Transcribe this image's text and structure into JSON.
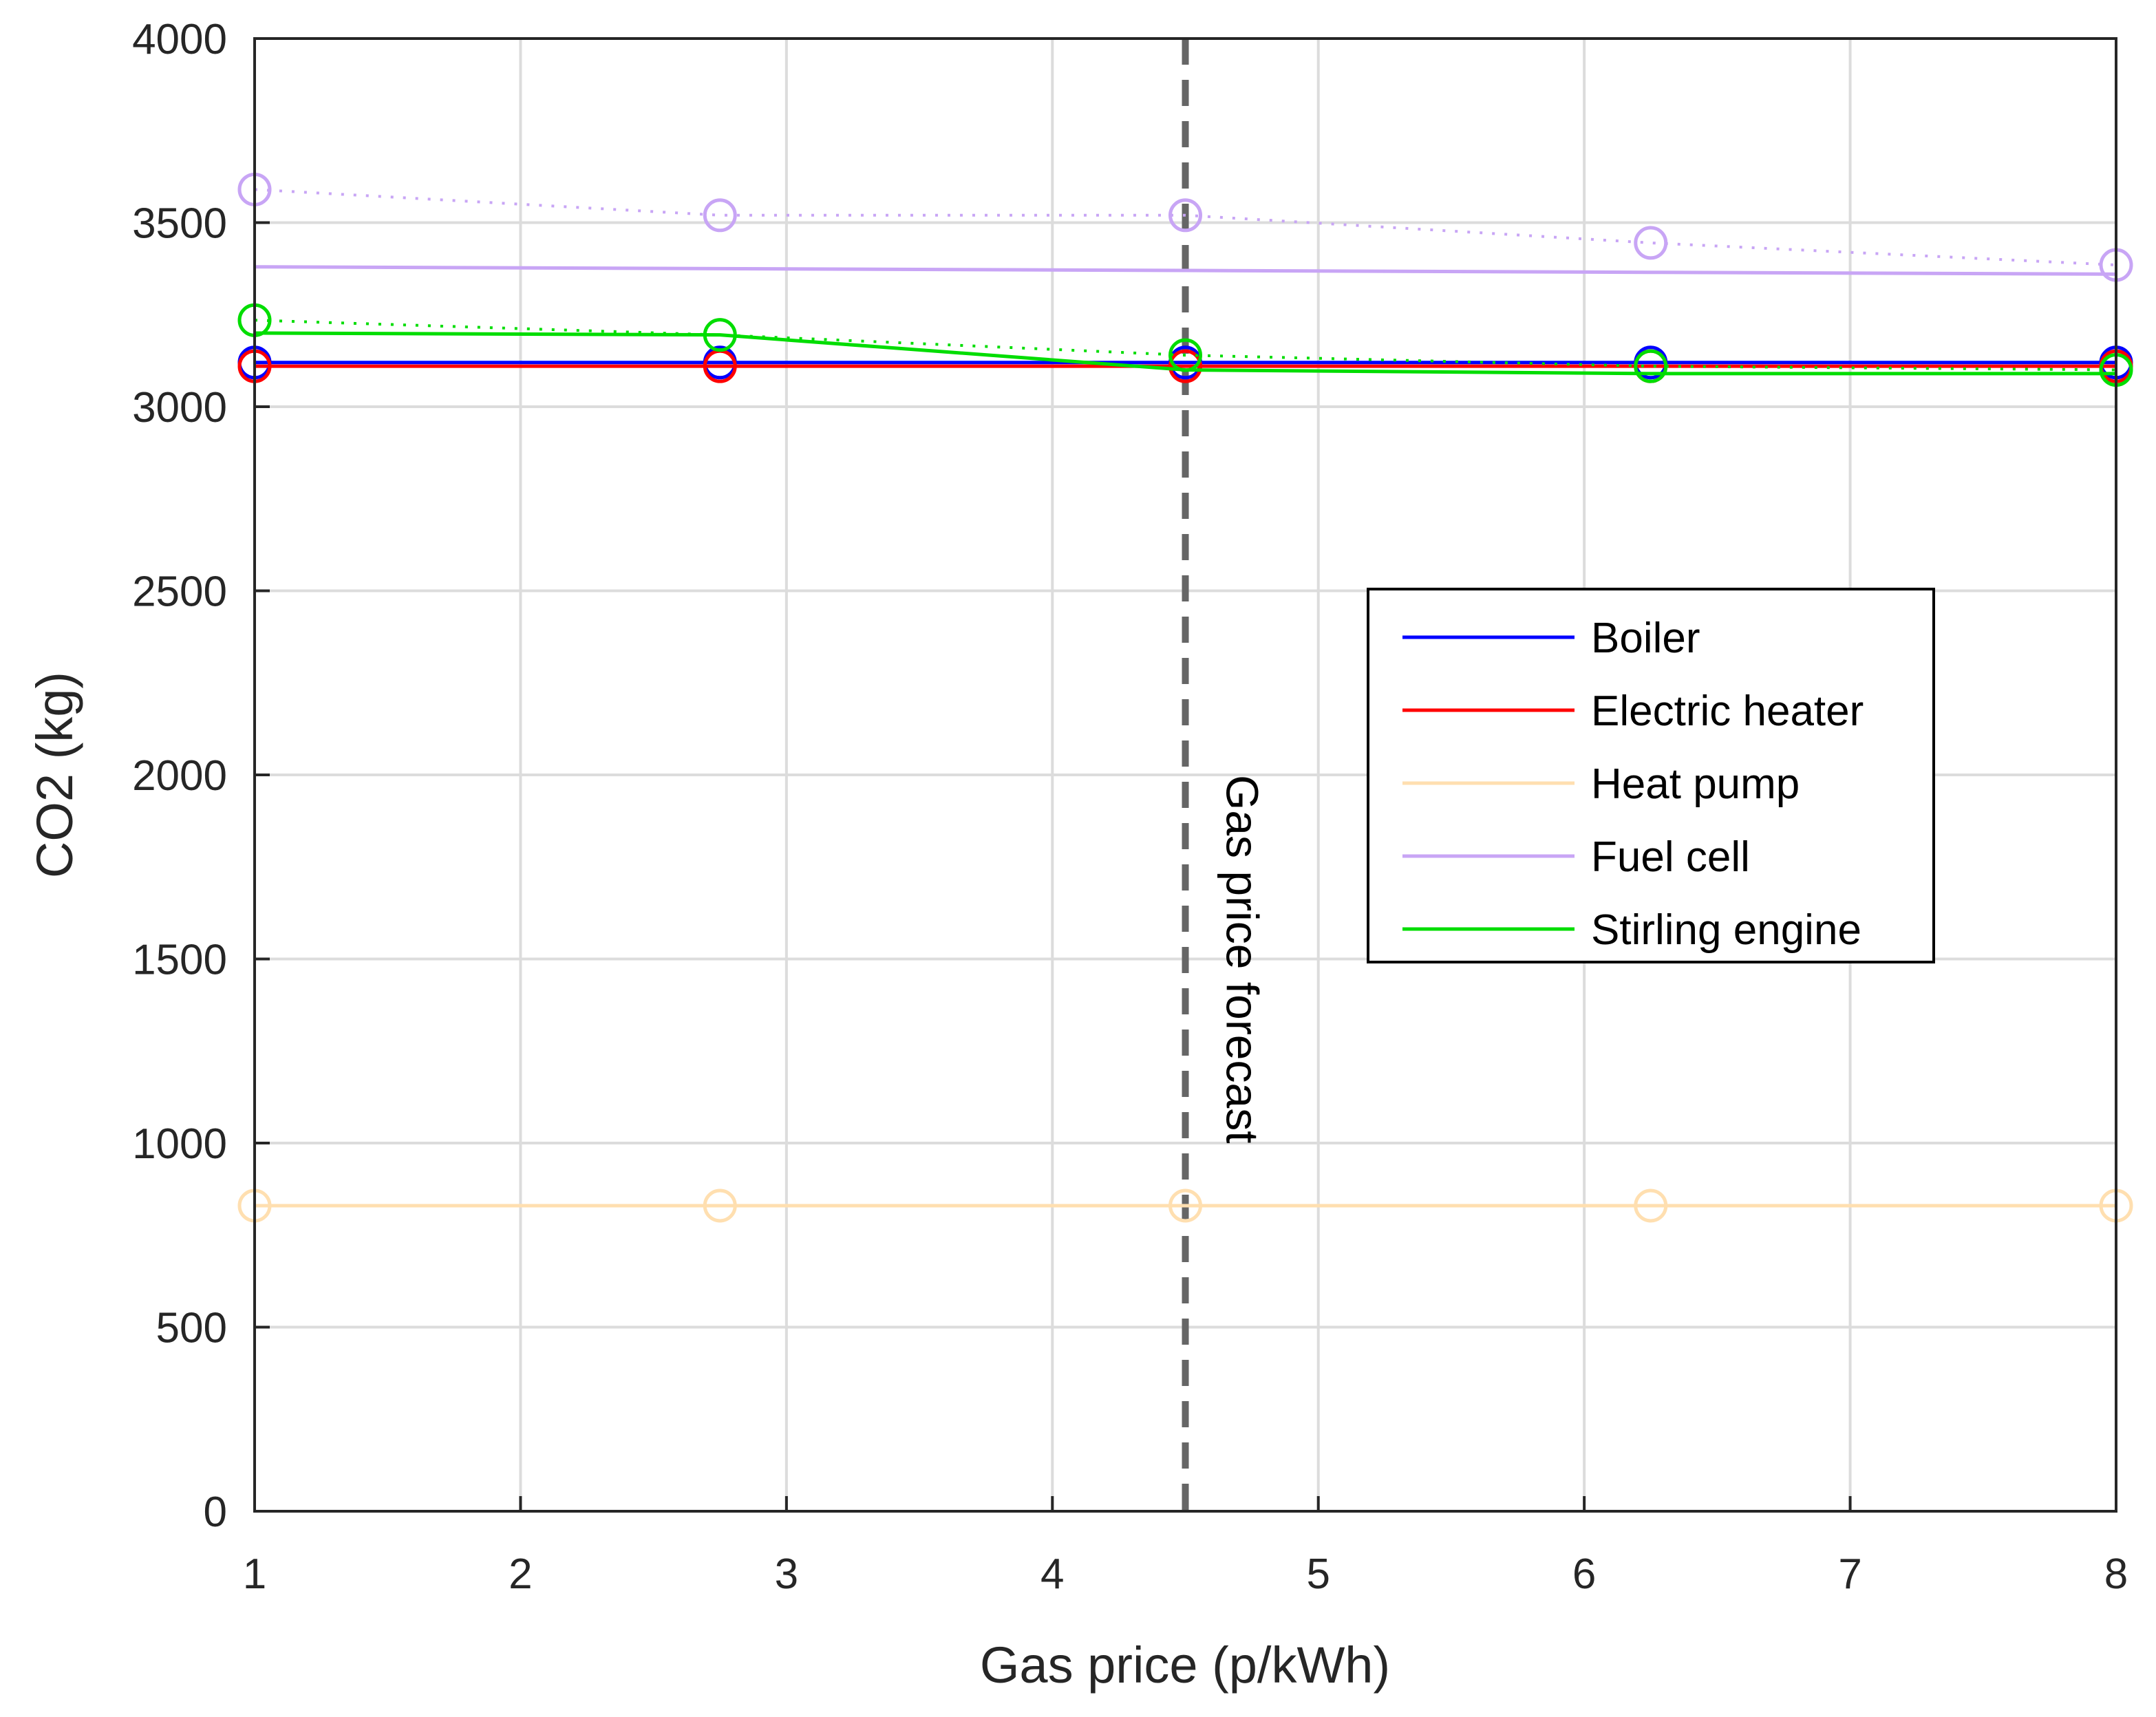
{
  "chart_data": {
    "type": "line",
    "xlabel": "Gas price (p/kWh)",
    "ylabel": "CO2 (kg)",
    "xlim": [
      1,
      8
    ],
    "ylim": [
      0,
      4000
    ],
    "xticks": [
      "1",
      "2",
      "3",
      "4",
      "5",
      "6",
      "7",
      "8"
    ],
    "yticks": [
      "0",
      "500",
      "1000",
      "1500",
      "2000",
      "2500",
      "3000",
      "3500",
      "4000"
    ],
    "grid": true,
    "legend_position": "center-right",
    "x": [
      1,
      2.75,
      4.5,
      6.25,
      8
    ],
    "series": [
      {
        "name": "Boiler",
        "color": "#0000ff",
        "solid": [
          3120,
          3120,
          3120,
          3120,
          3120
        ],
        "markers": [
          3120,
          3120,
          3120,
          3120,
          3120
        ]
      },
      {
        "name": "Electric heater",
        "color": "#ff0000",
        "solid": [
          3110,
          3110,
          3110,
          3110,
          3110
        ],
        "markers": [
          3110,
          3110,
          3110,
          3110,
          3110
        ]
      },
      {
        "name": "Heat pump",
        "color": "#ffdfb0",
        "solid": [
          830,
          830,
          830,
          830,
          830
        ],
        "markers": [
          830,
          830,
          830,
          830,
          830
        ]
      },
      {
        "name": "Fuel cell",
        "color": "#c8a5f5",
        "solid": [
          3380,
          3375,
          3370,
          3365,
          3360
        ],
        "markers": [
          3590,
          3520,
          3520,
          3445,
          3385
        ]
      },
      {
        "name": "Stirling engine",
        "color": "#00dd00",
        "solid": [
          3200,
          3195,
          3100,
          3090,
          3090
        ],
        "markers": [
          3235,
          3195,
          3140,
          3110,
          3100
        ]
      }
    ],
    "annotation": {
      "label": "Gas price forecast",
      "x": 4.5,
      "line_color": "#666666"
    }
  }
}
